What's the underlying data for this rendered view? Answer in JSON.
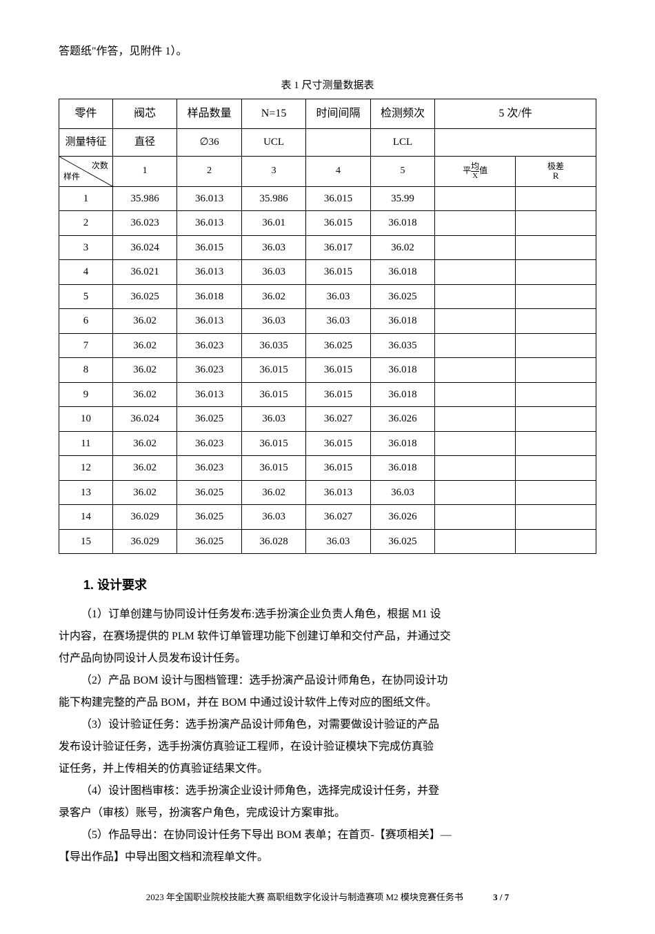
{
  "top_line": "答题纸\"作答，见附件 1）。",
  "table": {
    "caption": "表 1 尺寸测量数据表",
    "header1": {
      "c1": "零件",
      "c2": "阀芯",
      "c3": "样品数量",
      "c4": "N=15",
      "c5": "时间间隔",
      "c6": "检测频次",
      "c7": "5 次/件"
    },
    "header2": {
      "c1": "测量特征",
      "c2": "直径",
      "c3": "∅36",
      "c4": "UCL",
      "c5": "",
      "c6": "LCL",
      "c7": ""
    },
    "header3": {
      "diag_top": "次数",
      "diag_bottom": "样件",
      "c2": "1",
      "c3": "2",
      "c4": "3",
      "c5": "4",
      "c6": "5",
      "mean_prefix": "平",
      "mean_mid": "均",
      "mean_suffix": "值",
      "mean_sub": "X",
      "range_label": "极差",
      "range_sub": "R"
    },
    "rows": [
      [
        "1",
        "35.986",
        "36.013",
        "35.986",
        "36.015",
        "35.99",
        "",
        ""
      ],
      [
        "2",
        "36.023",
        "36.013",
        "36.01",
        "36.015",
        "36.018",
        "",
        ""
      ],
      [
        "3",
        "36.024",
        "36.015",
        "36.03",
        "36.017",
        "36.02",
        "",
        ""
      ],
      [
        "4",
        "36.021",
        "36.013",
        "36.03",
        "36.015",
        "36.018",
        "",
        ""
      ],
      [
        "5",
        "36.025",
        "36.018",
        "36.02",
        "36.03",
        "36.025",
        "",
        ""
      ],
      [
        "6",
        "36.02",
        "36.013",
        "36.03",
        "36.03",
        "36.018",
        "",
        ""
      ],
      [
        "7",
        "36.02",
        "36.023",
        "36.035",
        "36.025",
        "36.035",
        "",
        ""
      ],
      [
        "8",
        "36.02",
        "36.023",
        "36.015",
        "36.015",
        "36.018",
        "",
        ""
      ],
      [
        "9",
        "36.02",
        "36.013",
        "36.015",
        "36.015",
        "36.018",
        "",
        ""
      ],
      [
        "10",
        "36.024",
        "36.025",
        "36.03",
        "36.027",
        "36.026",
        "",
        ""
      ],
      [
        "11",
        "36.02",
        "36.023",
        "36.015",
        "36.015",
        "36.018",
        "",
        ""
      ],
      [
        "12",
        "36.02",
        "36.023",
        "36.015",
        "36.015",
        "36.018",
        "",
        ""
      ],
      [
        "13",
        "36.02",
        "36.025",
        "36.02",
        "36.013",
        "36.03",
        "",
        ""
      ],
      [
        "14",
        "36.029",
        "36.025",
        "36.03",
        "36.027",
        "36.026",
        "",
        ""
      ],
      [
        "15",
        "36.029",
        "36.025",
        "36.028",
        "36.03",
        "36.025",
        "",
        ""
      ]
    ]
  },
  "section_heading": "1. 设计要求",
  "paragraphs": [
    {
      "indent": true,
      "text": "（1）订单创建与协同设计任务发布:选手扮演企业负责人角色，根据 M1 设"
    },
    {
      "indent": false,
      "text": "计内容，在赛场提供的 PLM 软件订单管理功能下创建订单和交付产品，并通过交"
    },
    {
      "indent": false,
      "text": "付产品向协同设计人员发布设计任务。"
    },
    {
      "indent": true,
      "text": "（2）产品 BOM 设计与图档管理：选手扮演产品设计师角色，在协同设计功"
    },
    {
      "indent": false,
      "text": "能下构建完整的产品 BOM，并在 BOM 中通过设计软件上传对应的图纸文件。"
    },
    {
      "indent": true,
      "text": "（3）设计验证任务：选手扮演产品设计师角色，对需要做设计验证的产品"
    },
    {
      "indent": false,
      "text": "发布设计验证任务，选手扮演仿真验证工程师，在设计验证模块下完成仿真验"
    },
    {
      "indent": false,
      "text": "证任务，并上传相关的仿真验证结果文件。"
    },
    {
      "indent": true,
      "text": "（4）设计图档审核：选手扮演企业设计师角色，选择完成设计任务，并登"
    },
    {
      "indent": false,
      "text": "录客户（审核）账号，扮演客户角色，完成设计方案审批。"
    },
    {
      "indent": true,
      "text": "（5）作品导出：在协同设计任务下导出 BOM 表单；在首页-【赛项相关】—"
    },
    {
      "indent": false,
      "text": "【导出作品】中导出图文档和流程单文件。"
    }
  ],
  "footer": {
    "left": "2023 年全国职业院校技能大赛 高职组数字化设计与制造赛项 M2 模块竞赛任务书",
    "right": "3 / 7"
  }
}
